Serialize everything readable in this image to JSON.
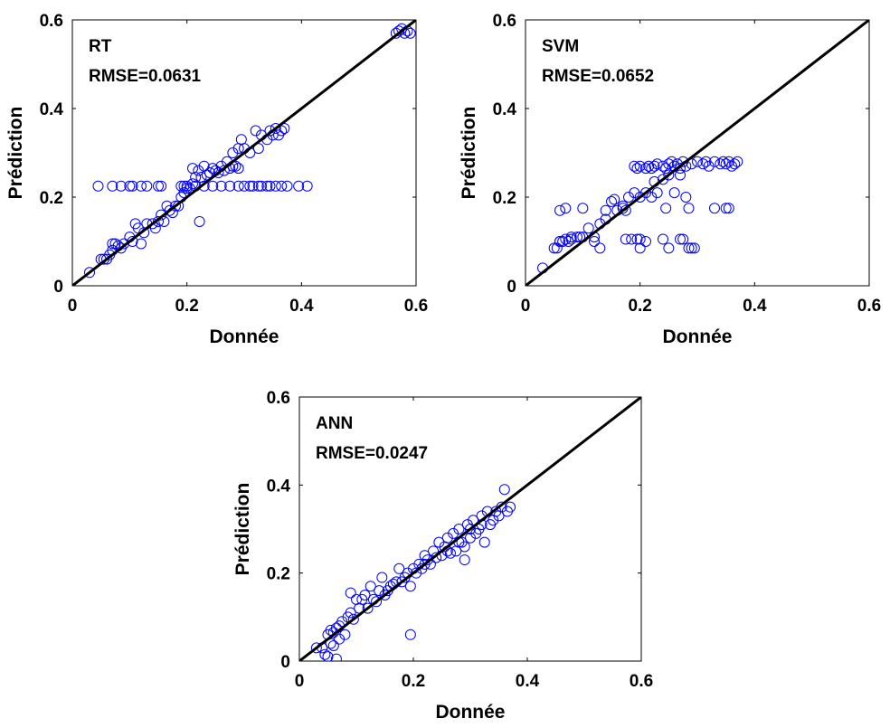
{
  "colors": {
    "marker": "#0000ff",
    "identity_line": "#000000",
    "axes": "#000000",
    "background": "#ffffff"
  },
  "chart_data": [
    {
      "type": "scatter",
      "title": "RT",
      "annotation": "RMSE=0.0631",
      "xlabel": "Donnée",
      "ylabel": "Prédiction",
      "xlim": [
        0,
        0.6
      ],
      "ylim": [
        0,
        0.6
      ],
      "xticks": [
        "0",
        "0.2",
        "0.4",
        "0.6"
      ],
      "yticks": [
        "0",
        "0.2",
        "0.4",
        "0.6"
      ],
      "grid": false,
      "marker": "open-circle",
      "reference_line": "y = x",
      "points": [
        [
          0.03,
          0.03
        ],
        [
          0.05,
          0.06
        ],
        [
          0.055,
          0.06
        ],
        [
          0.06,
          0.06
        ],
        [
          0.065,
          0.07
        ],
        [
          0.07,
          0.08
        ],
        [
          0.07,
          0.095
        ],
        [
          0.075,
          0.095
        ],
        [
          0.08,
          0.09
        ],
        [
          0.085,
          0.085
        ],
        [
          0.09,
          0.095
        ],
        [
          0.1,
          0.11
        ],
        [
          0.105,
          0.1
        ],
        [
          0.11,
          0.14
        ],
        [
          0.115,
          0.13
        ],
        [
          0.12,
          0.095
        ],
        [
          0.125,
          0.12
        ],
        [
          0.13,
          0.14
        ],
        [
          0.14,
          0.14
        ],
        [
          0.145,
          0.13
        ],
        [
          0.15,
          0.145
        ],
        [
          0.155,
          0.16
        ],
        [
          0.16,
          0.145
        ],
        [
          0.165,
          0.18
        ],
        [
          0.17,
          0.17
        ],
        [
          0.175,
          0.165
        ],
        [
          0.18,
          0.18
        ],
        [
          0.185,
          0.18
        ],
        [
          0.19,
          0.2
        ],
        [
          0.195,
          0.21
        ],
        [
          0.2,
          0.22
        ],
        [
          0.205,
          0.22
        ],
        [
          0.21,
          0.23
        ],
        [
          0.21,
          0.265
        ],
        [
          0.215,
          0.245
        ],
        [
          0.22,
          0.26
        ],
        [
          0.222,
          0.145
        ],
        [
          0.225,
          0.245
        ],
        [
          0.23,
          0.27
        ],
        [
          0.235,
          0.25
        ],
        [
          0.24,
          0.255
        ],
        [
          0.245,
          0.265
        ],
        [
          0.25,
          0.26
        ],
        [
          0.255,
          0.255
        ],
        [
          0.26,
          0.27
        ],
        [
          0.265,
          0.26
        ],
        [
          0.27,
          0.28
        ],
        [
          0.275,
          0.265
        ],
        [
          0.28,
          0.3
        ],
        [
          0.285,
          0.27
        ],
        [
          0.29,
          0.265
        ],
        [
          0.29,
          0.31
        ],
        [
          0.295,
          0.33
        ],
        [
          0.3,
          0.31
        ],
        [
          0.31,
          0.3
        ],
        [
          0.32,
          0.35
        ],
        [
          0.325,
          0.31
        ],
        [
          0.33,
          0.34
        ],
        [
          0.34,
          0.33
        ],
        [
          0.345,
          0.35
        ],
        [
          0.35,
          0.34
        ],
        [
          0.355,
          0.355
        ],
        [
          0.36,
          0.34
        ],
        [
          0.365,
          0.35
        ],
        [
          0.37,
          0.355
        ],
        [
          0.28,
          0.27
        ],
        [
          0.045,
          0.225
        ],
        [
          0.07,
          0.225
        ],
        [
          0.085,
          0.225
        ],
        [
          0.1,
          0.225
        ],
        [
          0.105,
          0.225
        ],
        [
          0.12,
          0.225
        ],
        [
          0.13,
          0.225
        ],
        [
          0.15,
          0.225
        ],
        [
          0.155,
          0.225
        ],
        [
          0.19,
          0.225
        ],
        [
          0.195,
          0.225
        ],
        [
          0.2,
          0.225
        ],
        [
          0.215,
          0.225
        ],
        [
          0.23,
          0.225
        ],
        [
          0.245,
          0.225
        ],
        [
          0.26,
          0.225
        ],
        [
          0.275,
          0.225
        ],
        [
          0.29,
          0.225
        ],
        [
          0.3,
          0.225
        ],
        [
          0.31,
          0.225
        ],
        [
          0.315,
          0.225
        ],
        [
          0.325,
          0.225
        ],
        [
          0.33,
          0.225
        ],
        [
          0.34,
          0.225
        ],
        [
          0.345,
          0.225
        ],
        [
          0.355,
          0.225
        ],
        [
          0.365,
          0.225
        ],
        [
          0.375,
          0.225
        ],
        [
          0.395,
          0.225
        ],
        [
          0.41,
          0.225
        ],
        [
          0.565,
          0.57
        ],
        [
          0.57,
          0.575
        ],
        [
          0.575,
          0.58
        ],
        [
          0.58,
          0.57
        ],
        [
          0.585,
          0.575
        ],
        [
          0.59,
          0.57
        ]
      ]
    },
    {
      "type": "scatter",
      "title": "SVM",
      "annotation": "RMSE=0.0652",
      "xlabel": "Donnée",
      "ylabel": "Prédiction",
      "xlim": [
        0,
        0.6
      ],
      "ylim": [
        0,
        0.6
      ],
      "xticks": [
        "0",
        "0.2",
        "0.4",
        "0.6"
      ],
      "yticks": [
        "0",
        "0.2",
        "0.4",
        "0.6"
      ],
      "grid": false,
      "marker": "open-circle",
      "reference_line": "y = x",
      "points": [
        [
          0.03,
          0.04
        ],
        [
          0.05,
          0.085
        ],
        [
          0.055,
          0.085
        ],
        [
          0.06,
          0.1
        ],
        [
          0.065,
          0.1
        ],
        [
          0.07,
          0.105
        ],
        [
          0.075,
          0.1
        ],
        [
          0.08,
          0.11
        ],
        [
          0.09,
          0.11
        ],
        [
          0.095,
          0.11
        ],
        [
          0.1,
          0.11
        ],
        [
          0.11,
          0.13
        ],
        [
          0.12,
          0.11
        ],
        [
          0.13,
          0.14
        ],
        [
          0.14,
          0.15
        ],
        [
          0.15,
          0.19
        ],
        [
          0.155,
          0.195
        ],
        [
          0.16,
          0.17
        ],
        [
          0.17,
          0.18
        ],
        [
          0.175,
          0.17
        ],
        [
          0.18,
          0.2
        ],
        [
          0.19,
          0.21
        ],
        [
          0.2,
          0.2
        ],
        [
          0.21,
          0.21
        ],
        [
          0.22,
          0.2
        ],
        [
          0.225,
          0.235
        ],
        [
          0.23,
          0.21
        ],
        [
          0.24,
          0.24
        ],
        [
          0.25,
          0.25
        ],
        [
          0.26,
          0.21
        ],
        [
          0.27,
          0.25
        ],
        [
          0.28,
          0.2
        ],
        [
          0.06,
          0.17
        ],
        [
          0.07,
          0.175
        ],
        [
          0.1,
          0.175
        ],
        [
          0.14,
          0.17
        ],
        [
          0.17,
          0.175
        ],
        [
          0.245,
          0.175
        ],
        [
          0.285,
          0.175
        ],
        [
          0.33,
          0.175
        ],
        [
          0.35,
          0.175
        ],
        [
          0.355,
          0.175
        ],
        [
          0.06,
          0.1
        ],
        [
          0.08,
          0.105
        ],
        [
          0.12,
          0.1
        ],
        [
          0.175,
          0.105
        ],
        [
          0.185,
          0.105
        ],
        [
          0.195,
          0.105
        ],
        [
          0.2,
          0.105
        ],
        [
          0.21,
          0.1
        ],
        [
          0.24,
          0.105
        ],
        [
          0.27,
          0.105
        ],
        [
          0.275,
          0.105
        ],
        [
          0.285,
          0.085
        ],
        [
          0.29,
          0.085
        ],
        [
          0.295,
          0.085
        ],
        [
          0.25,
          0.085
        ],
        [
          0.2,
          0.085
        ],
        [
          0.13,
          0.085
        ],
        [
          0.19,
          0.27
        ],
        [
          0.195,
          0.265
        ],
        [
          0.2,
          0.27
        ],
        [
          0.21,
          0.265
        ],
        [
          0.215,
          0.27
        ],
        [
          0.22,
          0.265
        ],
        [
          0.225,
          0.27
        ],
        [
          0.23,
          0.275
        ],
        [
          0.24,
          0.27
        ],
        [
          0.245,
          0.265
        ],
        [
          0.25,
          0.275
        ],
        [
          0.255,
          0.28
        ],
        [
          0.26,
          0.27
        ],
        [
          0.265,
          0.275
        ],
        [
          0.27,
          0.265
        ],
        [
          0.275,
          0.28
        ],
        [
          0.28,
          0.27
        ],
        [
          0.29,
          0.275
        ],
        [
          0.3,
          0.28
        ],
        [
          0.31,
          0.275
        ],
        [
          0.315,
          0.28
        ],
        [
          0.32,
          0.27
        ],
        [
          0.33,
          0.28
        ],
        [
          0.34,
          0.275
        ],
        [
          0.345,
          0.28
        ],
        [
          0.35,
          0.275
        ],
        [
          0.355,
          0.28
        ],
        [
          0.36,
          0.27
        ],
        [
          0.365,
          0.275
        ],
        [
          0.37,
          0.28
        ]
      ]
    },
    {
      "type": "scatter",
      "title": "ANN",
      "annotation": "RMSE=0.0247",
      "xlabel": "Donnée",
      "ylabel": "Prédiction",
      "xlim": [
        0,
        0.6
      ],
      "ylim": [
        0,
        0.6
      ],
      "xticks": [
        "0",
        "0.2",
        "0.4",
        "0.6"
      ],
      "yticks": [
        "0",
        "0.2",
        "0.4",
        "0.6"
      ],
      "grid": false,
      "marker": "open-circle",
      "reference_line": "y = x",
      "points": [
        [
          0.03,
          0.03
        ],
        [
          0.04,
          0.03
        ],
        [
          0.045,
          0.015
        ],
        [
          0.05,
          0.01
        ],
        [
          0.05,
          0.06
        ],
        [
          0.055,
          0.07
        ],
        [
          0.055,
          0.04
        ],
        [
          0.06,
          0.065
        ],
        [
          0.06,
          0.035
        ],
        [
          0.065,
          0.075
        ],
        [
          0.065,
          0.005
        ],
        [
          0.07,
          0.05
        ],
        [
          0.07,
          0.08
        ],
        [
          0.075,
          0.09
        ],
        [
          0.08,
          0.06
        ],
        [
          0.085,
          0.1
        ],
        [
          0.09,
          0.11
        ],
        [
          0.09,
          0.155
        ],
        [
          0.095,
          0.095
        ],
        [
          0.1,
          0.14
        ],
        [
          0.105,
          0.12
        ],
        [
          0.11,
          0.14
        ],
        [
          0.115,
          0.15
        ],
        [
          0.12,
          0.12
        ],
        [
          0.125,
          0.17
        ],
        [
          0.13,
          0.14
        ],
        [
          0.135,
          0.135
        ],
        [
          0.14,
          0.16
        ],
        [
          0.145,
          0.19
        ],
        [
          0.15,
          0.15
        ],
        [
          0.155,
          0.16
        ],
        [
          0.16,
          0.17
        ],
        [
          0.165,
          0.175
        ],
        [
          0.17,
          0.18
        ],
        [
          0.175,
          0.21
        ],
        [
          0.18,
          0.18
        ],
        [
          0.185,
          0.19
        ],
        [
          0.19,
          0.2
        ],
        [
          0.195,
          0.17
        ],
        [
          0.195,
          0.06
        ],
        [
          0.2,
          0.21
        ],
        [
          0.205,
          0.2
        ],
        [
          0.21,
          0.22
        ],
        [
          0.215,
          0.21
        ],
        [
          0.22,
          0.24
        ],
        [
          0.225,
          0.23
        ],
        [
          0.23,
          0.22
        ],
        [
          0.235,
          0.25
        ],
        [
          0.24,
          0.235
        ],
        [
          0.245,
          0.27
        ],
        [
          0.25,
          0.24
        ],
        [
          0.255,
          0.26
        ],
        [
          0.26,
          0.28
        ],
        [
          0.265,
          0.245
        ],
        [
          0.27,
          0.29
        ],
        [
          0.275,
          0.25
        ],
        [
          0.28,
          0.3
        ],
        [
          0.285,
          0.27
        ],
        [
          0.29,
          0.23
        ],
        [
          0.29,
          0.26
        ],
        [
          0.295,
          0.31
        ],
        [
          0.3,
          0.28
        ],
        [
          0.305,
          0.32
        ],
        [
          0.31,
          0.29
        ],
        [
          0.315,
          0.3
        ],
        [
          0.32,
          0.33
        ],
        [
          0.325,
          0.27
        ],
        [
          0.33,
          0.34
        ],
        [
          0.335,
          0.31
        ],
        [
          0.34,
          0.32
        ],
        [
          0.345,
          0.34
        ],
        [
          0.35,
          0.33
        ],
        [
          0.355,
          0.35
        ],
        [
          0.36,
          0.39
        ],
        [
          0.365,
          0.34
        ],
        [
          0.37,
          0.35
        ],
        [
          0.22,
          0.22
        ],
        [
          0.26,
          0.25
        ],
        [
          0.28,
          0.27
        ],
        [
          0.3,
          0.3
        ],
        [
          0.32,
          0.31
        ]
      ]
    }
  ]
}
